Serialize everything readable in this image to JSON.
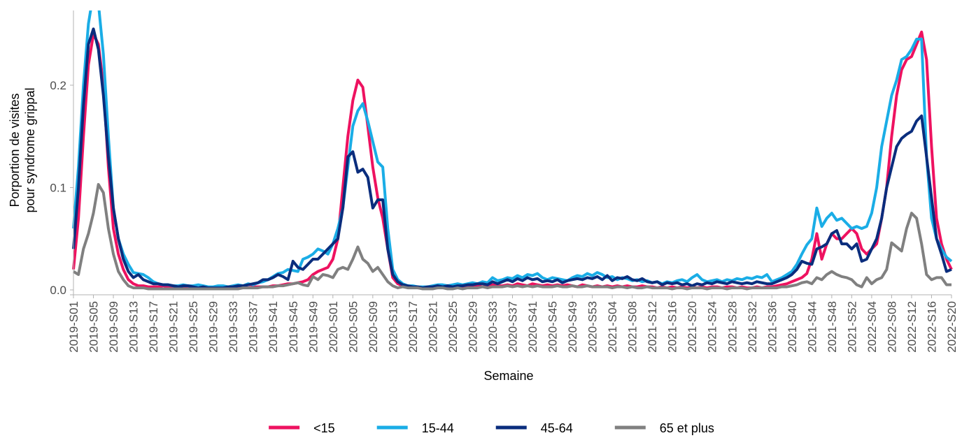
{
  "chart_data": {
    "type": "line",
    "x_label": "Semaine",
    "y_label": [
      "Porportion de visites",
      "pour syndrome grippal"
    ],
    "categories": [
      "2019-S01",
      null,
      null,
      null,
      "2019-S05",
      null,
      null,
      null,
      "2019-S09",
      null,
      null,
      null,
      "2019-S13",
      null,
      null,
      null,
      "2019-S17",
      null,
      null,
      null,
      "2019-S21",
      null,
      null,
      null,
      "2019-S25",
      null,
      null,
      null,
      "2019-S29",
      null,
      null,
      null,
      "2019-S33",
      null,
      null,
      null,
      "2019-S37",
      null,
      null,
      null,
      "2019-S41",
      null,
      null,
      null,
      "2019-S45",
      null,
      null,
      null,
      "2019-S49",
      null,
      null,
      null,
      "2020-S01",
      null,
      null,
      null,
      "2020-S05",
      null,
      null,
      null,
      "2020-S09",
      null,
      null,
      null,
      "2020-S13",
      null,
      null,
      null,
      "2020-S17",
      null,
      null,
      null,
      "2020-S21",
      null,
      null,
      null,
      "2020-S25",
      null,
      null,
      null,
      "2020-S29",
      null,
      null,
      null,
      "2020-S33",
      null,
      null,
      null,
      "2020-S37",
      null,
      null,
      null,
      "2020-S41",
      null,
      null,
      null,
      "2020-S45",
      null,
      null,
      null,
      "2020-S49",
      null,
      null,
      null,
      "2020-S53",
      null,
      null,
      null,
      "2021-S04",
      null,
      null,
      null,
      "2021-S08",
      null,
      null,
      null,
      "2021-S12",
      null,
      null,
      null,
      "2021-S16",
      null,
      null,
      null,
      "2021-S20",
      null,
      null,
      null,
      "2021-S24",
      null,
      null,
      null,
      "2021-S28",
      null,
      null,
      null,
      "2021-S32",
      null,
      null,
      null,
      "2021-S36",
      null,
      null,
      null,
      "2021-S40",
      null,
      null,
      null,
      "2021-S44",
      null,
      null,
      null,
      "2021-S48",
      null,
      null,
      null,
      "2021-S52",
      null,
      null,
      null,
      "2022-S04",
      null,
      null,
      null,
      "2022-S08",
      null,
      null,
      null,
      "2022-S12",
      null,
      null,
      null,
      "2022-S16",
      null,
      null,
      null,
      "2022-S20"
    ],
    "series": [
      {
        "name": "<15",
        "color": "#ee1260",
        "values": [
          0.02,
          0.07,
          0.15,
          0.22,
          0.25,
          0.24,
          0.2,
          0.12,
          0.06,
          0.035,
          0.02,
          0.01,
          0.006,
          0.004,
          0.004,
          0.003,
          0.003,
          0.003,
          0.004,
          0.003,
          0.002,
          0.002,
          0.003,
          0.002,
          0.002,
          0.002,
          0.002,
          0.002,
          0.002,
          0.002,
          0.002,
          0.002,
          0.002,
          0.002,
          0.003,
          0.002,
          0.003,
          0.003,
          0.003,
          0.003,
          0.004,
          0.004,
          0.005,
          0.006,
          0.006,
          0.007,
          0.008,
          0.01,
          0.015,
          0.018,
          0.02,
          0.022,
          0.03,
          0.05,
          0.1,
          0.15,
          0.185,
          0.205,
          0.198,
          0.16,
          0.12,
          0.09,
          0.07,
          0.04,
          0.012,
          0.006,
          0.004,
          0.003,
          0.003,
          0.002,
          0.002,
          0.002,
          0.002,
          0.002,
          0.003,
          0.002,
          0.002,
          0.003,
          0.003,
          0.004,
          0.003,
          0.004,
          0.003,
          0.004,
          0.005,
          0.004,
          0.004,
          0.005,
          0.004,
          0.006,
          0.005,
          0.004,
          0.006,
          0.005,
          0.004,
          0.005,
          0.004,
          0.005,
          0.004,
          0.005,
          0.004,
          0.003,
          0.005,
          0.004,
          0.003,
          0.004,
          0.003,
          0.004,
          0.003,
          0.004,
          0.003,
          0.004,
          0.003,
          0.003,
          0.004,
          0.003,
          0.003,
          0.002,
          0.003,
          0.002,
          0.003,
          0.002,
          0.003,
          0.002,
          0.003,
          0.002,
          0.003,
          0.002,
          0.003,
          0.003,
          0.002,
          0.003,
          0.003,
          0.002,
          0.003,
          0.002,
          0.002,
          0.003,
          0.002,
          0.003,
          0.003,
          0.004,
          0.005,
          0.006,
          0.008,
          0.01,
          0.012,
          0.016,
          0.03,
          0.055,
          0.03,
          0.045,
          0.055,
          0.05,
          0.05,
          0.055,
          0.06,
          0.055,
          0.04,
          0.035,
          0.04,
          0.045,
          0.07,
          0.1,
          0.15,
          0.19,
          0.215,
          0.225,
          0.228,
          0.24,
          0.252,
          0.225,
          0.14,
          0.07,
          0.045,
          0.03,
          0.02
        ]
      },
      {
        "name": "15-44",
        "color": "#1aade6",
        "values": [
          0.06,
          0.12,
          0.2,
          0.26,
          0.29,
          0.28,
          0.23,
          0.15,
          0.08,
          0.05,
          0.035,
          0.025,
          0.017,
          0.016,
          0.015,
          0.012,
          0.008,
          0.006,
          0.005,
          0.005,
          0.004,
          0.004,
          0.005,
          0.004,
          0.004,
          0.005,
          0.004,
          0.003,
          0.003,
          0.004,
          0.004,
          0.003,
          0.004,
          0.005,
          0.004,
          0.006,
          0.005,
          0.007,
          0.008,
          0.01,
          0.013,
          0.016,
          0.017,
          0.02,
          0.019,
          0.018,
          0.03,
          0.032,
          0.035,
          0.04,
          0.038,
          0.035,
          0.045,
          0.06,
          0.08,
          0.12,
          0.16,
          0.175,
          0.182,
          0.165,
          0.145,
          0.125,
          0.12,
          0.06,
          0.02,
          0.01,
          0.006,
          0.004,
          0.004,
          0.003,
          0.003,
          0.003,
          0.004,
          0.005,
          0.005,
          0.004,
          0.005,
          0.006,
          0.005,
          0.006,
          0.007,
          0.006,
          0.008,
          0.007,
          0.012,
          0.009,
          0.01,
          0.012,
          0.011,
          0.014,
          0.012,
          0.015,
          0.014,
          0.016,
          0.012,
          0.01,
          0.012,
          0.011,
          0.01,
          0.009,
          0.012,
          0.014,
          0.013,
          0.016,
          0.014,
          0.017,
          0.015,
          0.012,
          0.013,
          0.01,
          0.012,
          0.011,
          0.009,
          0.01,
          0.008,
          0.009,
          0.007,
          0.008,
          0.006,
          0.008,
          0.007,
          0.009,
          0.01,
          0.008,
          0.012,
          0.015,
          0.01,
          0.008,
          0.009,
          0.01,
          0.008,
          0.01,
          0.009,
          0.011,
          0.01,
          0.012,
          0.011,
          0.013,
          0.012,
          0.015,
          0.008,
          0.01,
          0.012,
          0.015,
          0.018,
          0.025,
          0.035,
          0.044,
          0.05,
          0.08,
          0.062,
          0.07,
          0.075,
          0.068,
          0.07,
          0.065,
          0.06,
          0.062,
          0.06,
          0.062,
          0.075,
          0.1,
          0.14,
          0.165,
          0.19,
          0.205,
          0.225,
          0.228,
          0.235,
          0.245,
          0.245,
          0.13,
          0.07,
          0.05,
          0.04,
          0.032,
          0.028
        ]
      },
      {
        "name": "45-64",
        "color": "#0a2d7d",
        "values": [
          0.04,
          0.1,
          0.18,
          0.24,
          0.255,
          0.235,
          0.19,
          0.13,
          0.08,
          0.05,
          0.03,
          0.018,
          0.012,
          0.015,
          0.01,
          0.008,
          0.006,
          0.006,
          0.005,
          0.005,
          0.004,
          0.003,
          0.004,
          0.004,
          0.003,
          0.002,
          0.003,
          0.002,
          0.002,
          0.002,
          0.002,
          0.003,
          0.003,
          0.004,
          0.004,
          0.005,
          0.006,
          0.007,
          0.01,
          0.01,
          0.012,
          0.015,
          0.013,
          0.01,
          0.028,
          0.022,
          0.02,
          0.025,
          0.03,
          0.03,
          0.035,
          0.04,
          0.045,
          0.05,
          0.08,
          0.13,
          0.135,
          0.115,
          0.118,
          0.11,
          0.08,
          0.088,
          0.088,
          0.04,
          0.015,
          0.008,
          0.005,
          0.004,
          0.003,
          0.003,
          0.002,
          0.003,
          0.003,
          0.004,
          0.003,
          0.004,
          0.003,
          0.004,
          0.004,
          0.005,
          0.005,
          0.006,
          0.006,
          0.005,
          0.008,
          0.006,
          0.008,
          0.01,
          0.008,
          0.011,
          0.009,
          0.012,
          0.01,
          0.011,
          0.008,
          0.009,
          0.008,
          0.01,
          0.007,
          0.009,
          0.01,
          0.011,
          0.01,
          0.012,
          0.011,
          0.013,
          0.01,
          0.014,
          0.009,
          0.012,
          0.011,
          0.013,
          0.01,
          0.009,
          0.011,
          0.008,
          0.007,
          0.008,
          0.005,
          0.007,
          0.006,
          0.007,
          0.005,
          0.006,
          0.004,
          0.006,
          0.005,
          0.007,
          0.006,
          0.008,
          0.007,
          0.006,
          0.008,
          0.007,
          0.006,
          0.007,
          0.006,
          0.008,
          0.007,
          0.006,
          0.006,
          0.008,
          0.01,
          0.012,
          0.015,
          0.02,
          0.028,
          0.026,
          0.025,
          0.04,
          0.042,
          0.045,
          0.055,
          0.058,
          0.045,
          0.045,
          0.04,
          0.045,
          0.028,
          0.03,
          0.04,
          0.05,
          0.07,
          0.1,
          0.12,
          0.14,
          0.148,
          0.152,
          0.155,
          0.165,
          0.17,
          0.13,
          0.09,
          0.05,
          0.035,
          0.018,
          0.02
        ]
      },
      {
        "name": "65 et plus",
        "color": "#808080",
        "values": [
          0.018,
          0.015,
          0.04,
          0.055,
          0.075,
          0.103,
          0.095,
          0.06,
          0.035,
          0.018,
          0.01,
          0.004,
          0.002,
          0.002,
          0.002,
          0.001,
          0.001,
          0.001,
          0.001,
          0.001,
          0.001,
          0.001,
          0.001,
          0.001,
          0.001,
          0.001,
          0.001,
          0.001,
          0.001,
          0.001,
          0.001,
          0.001,
          0.001,
          0.001,
          0.002,
          0.002,
          0.002,
          0.002,
          0.003,
          0.003,
          0.003,
          0.004,
          0.004,
          0.005,
          0.006,
          0.007,
          0.005,
          0.004,
          0.013,
          0.01,
          0.015,
          0.014,
          0.012,
          0.02,
          0.022,
          0.02,
          0.03,
          0.042,
          0.03,
          0.026,
          0.018,
          0.022,
          0.015,
          0.008,
          0.004,
          0.002,
          0.003,
          0.002,
          0.002,
          0.002,
          0.001,
          0.001,
          0.001,
          0.002,
          0.002,
          0.001,
          0.001,
          0.002,
          0.001,
          0.002,
          0.002,
          0.002,
          0.003,
          0.002,
          0.003,
          0.003,
          0.003,
          0.004,
          0.003,
          0.004,
          0.003,
          0.004,
          0.003,
          0.004,
          0.003,
          0.003,
          0.003,
          0.004,
          0.003,
          0.003,
          0.004,
          0.003,
          0.003,
          0.004,
          0.003,
          0.003,
          0.003,
          0.003,
          0.002,
          0.003,
          0.003,
          0.002,
          0.003,
          0.002,
          0.002,
          0.003,
          0.002,
          0.002,
          0.002,
          0.002,
          0.001,
          0.002,
          0.002,
          0.001,
          0.002,
          0.002,
          0.002,
          0.001,
          0.002,
          0.002,
          0.002,
          0.001,
          0.002,
          0.002,
          0.002,
          0.001,
          0.002,
          0.002,
          0.002,
          0.002,
          0.002,
          0.002,
          0.003,
          0.003,
          0.004,
          0.005,
          0.007,
          0.008,
          0.006,
          0.012,
          0.01,
          0.015,
          0.018,
          0.015,
          0.013,
          0.012,
          0.01,
          0.005,
          0.003,
          0.012,
          0.006,
          0.01,
          0.012,
          0.02,
          0.046,
          0.042,
          0.038,
          0.06,
          0.075,
          0.07,
          0.045,
          0.015,
          0.01,
          0.012,
          0.012,
          0.005,
          0.005
        ]
      }
    ],
    "ylim": [
      0,
      0.273
    ],
    "yticks": [
      {
        "value": 0,
        "label": "0.0"
      },
      0.1,
      0.2
    ],
    "grid": false,
    "legend": "bottom"
  }
}
